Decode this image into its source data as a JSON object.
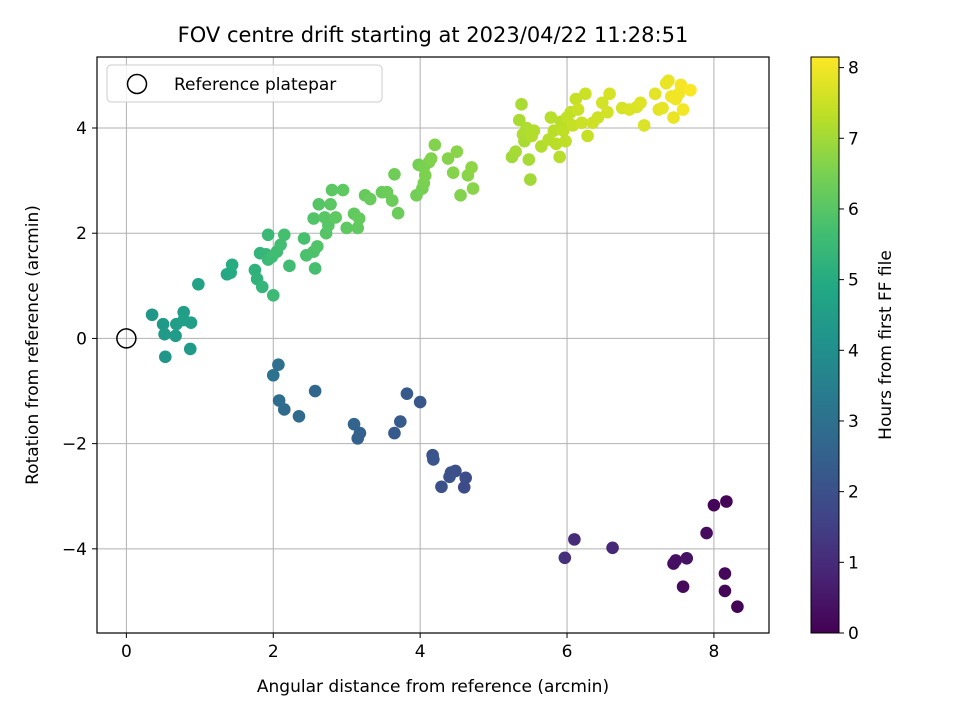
{
  "chart_data": {
    "type": "scatter",
    "title": "FOV centre drift starting at 2023/04/22 11:28:51",
    "xlabel": "Angular distance from reference (arcmin)",
    "ylabel": "Rotation from reference (arcmin)",
    "xlim": [
      -0.4,
      8.75
    ],
    "ylim": [
      -5.6,
      5.35
    ],
    "xticks": [
      0,
      2,
      4,
      6,
      8
    ],
    "yticks": [
      -4,
      -2,
      0,
      2,
      4
    ],
    "grid": true,
    "legend": {
      "placement": "top-left",
      "entries": [
        "Reference platepar"
      ]
    },
    "reference_point": {
      "x": 0,
      "y": 0
    },
    "colorbar": {
      "label": "Hours from first FF file",
      "min": 0,
      "max": 8.15,
      "ticks": [
        0,
        1,
        2,
        3,
        4,
        5,
        6,
        7,
        8
      ],
      "colormap": "viridis"
    },
    "points": [
      {
        "x": 8.32,
        "y": -5.1,
        "c": 0.05
      },
      {
        "x": 8.15,
        "y": -4.8,
        "c": 0.1
      },
      {
        "x": 8.15,
        "y": -4.47,
        "c": 0.15
      },
      {
        "x": 7.58,
        "y": -4.72,
        "c": 0.2
      },
      {
        "x": 7.45,
        "y": -4.28,
        "c": 0.3
      },
      {
        "x": 7.48,
        "y": -4.22,
        "c": 0.35
      },
      {
        "x": 7.63,
        "y": -4.18,
        "c": 0.4
      },
      {
        "x": 7.9,
        "y": -3.7,
        "c": 0.25
      },
      {
        "x": 8.0,
        "y": -3.17,
        "c": 0.1
      },
      {
        "x": 8.17,
        "y": -3.1,
        "c": 0.05
      },
      {
        "x": 6.62,
        "y": -3.98,
        "c": 0.9
      },
      {
        "x": 6.1,
        "y": -3.82,
        "c": 1.0
      },
      {
        "x": 5.97,
        "y": -4.17,
        "c": 1.1
      },
      {
        "x": 4.6,
        "y": -2.83,
        "c": 1.85
      },
      {
        "x": 4.62,
        "y": -2.65,
        "c": 1.9
      },
      {
        "x": 4.48,
        "y": -2.52,
        "c": 1.95
      },
      {
        "x": 4.42,
        "y": -2.55,
        "c": 2.0
      },
      {
        "x": 4.4,
        "y": -2.63,
        "c": 2.05
      },
      {
        "x": 4.29,
        "y": -2.82,
        "c": 2.0
      },
      {
        "x": 4.17,
        "y": -2.22,
        "c": 2.1
      },
      {
        "x": 4.18,
        "y": -2.3,
        "c": 2.15
      },
      {
        "x": 4.0,
        "y": -1.21,
        "c": 2.2
      },
      {
        "x": 3.82,
        "y": -1.05,
        "c": 2.3
      },
      {
        "x": 3.73,
        "y": -1.58,
        "c": 2.35
      },
      {
        "x": 3.65,
        "y": -1.8,
        "c": 2.3
      },
      {
        "x": 3.15,
        "y": -1.9,
        "c": 2.5
      },
      {
        "x": 3.18,
        "y": -1.8,
        "c": 2.55
      },
      {
        "x": 3.1,
        "y": -1.63,
        "c": 2.6
      },
      {
        "x": 2.57,
        "y": -1.0,
        "c": 2.7
      },
      {
        "x": 2.35,
        "y": -1.48,
        "c": 2.8
      },
      {
        "x": 2.15,
        "y": -1.35,
        "c": 2.85
      },
      {
        "x": 2.08,
        "y": -1.18,
        "c": 2.9
      },
      {
        "x": 2.07,
        "y": -0.5,
        "c": 3.0
      },
      {
        "x": 2.0,
        "y": -0.7,
        "c": 3.05
      },
      {
        "x": 0.35,
        "y": 0.45,
        "c": 4.3
      },
      {
        "x": 0.5,
        "y": 0.27,
        "c": 4.35
      },
      {
        "x": 0.52,
        "y": 0.08,
        "c": 4.4
      },
      {
        "x": 0.53,
        "y": -0.35,
        "c": 4.3
      },
      {
        "x": 0.67,
        "y": 0.05,
        "c": 4.45
      },
      {
        "x": 0.68,
        "y": 0.27,
        "c": 4.5
      },
      {
        "x": 0.78,
        "y": 0.5,
        "c": 4.55
      },
      {
        "x": 0.78,
        "y": 0.35,
        "c": 4.6
      },
      {
        "x": 0.88,
        "y": 0.3,
        "c": 4.6
      },
      {
        "x": 0.87,
        "y": -0.2,
        "c": 4.4
      },
      {
        "x": 0.98,
        "y": 1.03,
        "c": 4.7
      },
      {
        "x": 1.37,
        "y": 1.22,
        "c": 4.9
      },
      {
        "x": 1.42,
        "y": 1.25,
        "c": 4.95
      },
      {
        "x": 1.44,
        "y": 1.4,
        "c": 5.0
      },
      {
        "x": 1.75,
        "y": 1.3,
        "c": 5.2
      },
      {
        "x": 1.78,
        "y": 1.13,
        "c": 5.25
      },
      {
        "x": 1.82,
        "y": 1.62,
        "c": 5.3
      },
      {
        "x": 1.85,
        "y": 0.98,
        "c": 5.35
      },
      {
        "x": 1.9,
        "y": 1.6,
        "c": 5.4
      },
      {
        "x": 1.93,
        "y": 1.97,
        "c": 5.45
      },
      {
        "x": 1.93,
        "y": 1.5,
        "c": 5.5
      },
      {
        "x": 1.98,
        "y": 1.55,
        "c": 5.55
      },
      {
        "x": 2.0,
        "y": 0.82,
        "c": 5.5
      },
      {
        "x": 2.05,
        "y": 1.65,
        "c": 5.6
      },
      {
        "x": 2.1,
        "y": 1.78,
        "c": 5.65
      },
      {
        "x": 2.15,
        "y": 1.97,
        "c": 5.7
      },
      {
        "x": 2.22,
        "y": 1.38,
        "c": 5.6
      },
      {
        "x": 2.42,
        "y": 1.9,
        "c": 5.75
      },
      {
        "x": 2.45,
        "y": 1.58,
        "c": 5.8
      },
      {
        "x": 2.55,
        "y": 1.65,
        "c": 5.85
      },
      {
        "x": 2.57,
        "y": 1.33,
        "c": 5.7
      },
      {
        "x": 2.55,
        "y": 2.28,
        "c": 5.9
      },
      {
        "x": 2.6,
        "y": 1.75,
        "c": 5.9
      },
      {
        "x": 2.62,
        "y": 2.55,
        "c": 5.95
      },
      {
        "x": 2.7,
        "y": 2.3,
        "c": 6.0
      },
      {
        "x": 2.72,
        "y": 2.0,
        "c": 5.95
      },
      {
        "x": 2.75,
        "y": 2.15,
        "c": 6.0
      },
      {
        "x": 2.78,
        "y": 2.55,
        "c": 6.05
      },
      {
        "x": 2.8,
        "y": 2.82,
        "c": 6.05
      },
      {
        "x": 2.85,
        "y": 2.3,
        "c": 6.1
      },
      {
        "x": 2.95,
        "y": 2.82,
        "c": 6.1
      },
      {
        "x": 3.0,
        "y": 2.1,
        "c": 6.1
      },
      {
        "x": 3.1,
        "y": 2.37,
        "c": 6.15
      },
      {
        "x": 3.15,
        "y": 2.1,
        "c": 6.15
      },
      {
        "x": 3.17,
        "y": 2.28,
        "c": 6.2
      },
      {
        "x": 3.25,
        "y": 2.72,
        "c": 6.2
      },
      {
        "x": 3.32,
        "y": 2.65,
        "c": 6.25
      },
      {
        "x": 3.48,
        "y": 2.78,
        "c": 6.25
      },
      {
        "x": 3.55,
        "y": 2.78,
        "c": 6.3
      },
      {
        "x": 3.62,
        "y": 2.62,
        "c": 6.3
      },
      {
        "x": 3.65,
        "y": 3.12,
        "c": 6.35
      },
      {
        "x": 3.7,
        "y": 2.38,
        "c": 6.3
      },
      {
        "x": 3.95,
        "y": 2.72,
        "c": 6.4
      },
      {
        "x": 3.98,
        "y": 3.3,
        "c": 6.45
      },
      {
        "x": 4.03,
        "y": 2.85,
        "c": 6.45
      },
      {
        "x": 4.05,
        "y": 2.95,
        "c": 6.5
      },
      {
        "x": 4.05,
        "y": 3.25,
        "c": 6.5
      },
      {
        "x": 4.07,
        "y": 3.1,
        "c": 6.55
      },
      {
        "x": 4.12,
        "y": 3.35,
        "c": 6.55
      },
      {
        "x": 4.15,
        "y": 3.42,
        "c": 6.6
      },
      {
        "x": 4.2,
        "y": 3.68,
        "c": 6.6
      },
      {
        "x": 4.38,
        "y": 3.42,
        "c": 6.65
      },
      {
        "x": 4.45,
        "y": 3.15,
        "c": 6.65
      },
      {
        "x": 4.5,
        "y": 3.55,
        "c": 6.7
      },
      {
        "x": 4.55,
        "y": 2.72,
        "c": 6.6
      },
      {
        "x": 4.65,
        "y": 3.1,
        "c": 6.7
      },
      {
        "x": 4.7,
        "y": 3.25,
        "c": 6.75
      },
      {
        "x": 4.72,
        "y": 2.85,
        "c": 6.7
      },
      {
        "x": 5.25,
        "y": 3.45,
        "c": 7.0
      },
      {
        "x": 5.3,
        "y": 3.55,
        "c": 7.05
      },
      {
        "x": 5.35,
        "y": 4.15,
        "c": 7.1
      },
      {
        "x": 5.38,
        "y": 4.45,
        "c": 7.1
      },
      {
        "x": 5.4,
        "y": 3.88,
        "c": 7.15
      },
      {
        "x": 5.42,
        "y": 3.75,
        "c": 7.1
      },
      {
        "x": 5.45,
        "y": 4.0,
        "c": 7.15
      },
      {
        "x": 5.48,
        "y": 3.4,
        "c": 7.05
      },
      {
        "x": 5.5,
        "y": 3.02,
        "c": 7.0
      },
      {
        "x": 5.52,
        "y": 3.85,
        "c": 7.2
      },
      {
        "x": 5.55,
        "y": 3.95,
        "c": 7.2
      },
      {
        "x": 5.65,
        "y": 3.65,
        "c": 7.2
      },
      {
        "x": 5.75,
        "y": 3.78,
        "c": 7.25
      },
      {
        "x": 5.78,
        "y": 4.2,
        "c": 7.25
      },
      {
        "x": 5.82,
        "y": 3.95,
        "c": 7.3
      },
      {
        "x": 5.85,
        "y": 3.7,
        "c": 7.3
      },
      {
        "x": 5.9,
        "y": 3.45,
        "c": 7.25
      },
      {
        "x": 5.92,
        "y": 4.12,
        "c": 7.3
      },
      {
        "x": 5.95,
        "y": 3.95,
        "c": 7.35
      },
      {
        "x": 5.98,
        "y": 3.75,
        "c": 7.35
      },
      {
        "x": 6.0,
        "y": 4.2,
        "c": 7.4
      },
      {
        "x": 6.05,
        "y": 4.3,
        "c": 7.4
      },
      {
        "x": 6.08,
        "y": 4.05,
        "c": 7.45
      },
      {
        "x": 6.12,
        "y": 4.55,
        "c": 7.45
      },
      {
        "x": 6.15,
        "y": 4.35,
        "c": 7.5
      },
      {
        "x": 6.2,
        "y": 4.1,
        "c": 7.5
      },
      {
        "x": 6.25,
        "y": 4.65,
        "c": 7.5
      },
      {
        "x": 6.28,
        "y": 3.85,
        "c": 7.45
      },
      {
        "x": 6.35,
        "y": 4.1,
        "c": 7.55
      },
      {
        "x": 6.42,
        "y": 4.2,
        "c": 7.55
      },
      {
        "x": 6.48,
        "y": 4.48,
        "c": 7.6
      },
      {
        "x": 6.55,
        "y": 4.3,
        "c": 7.6
      },
      {
        "x": 6.58,
        "y": 4.65,
        "c": 7.65
      },
      {
        "x": 6.75,
        "y": 4.38,
        "c": 7.65
      },
      {
        "x": 6.85,
        "y": 4.35,
        "c": 7.7
      },
      {
        "x": 6.95,
        "y": 4.4,
        "c": 7.7
      },
      {
        "x": 7.0,
        "y": 4.48,
        "c": 7.75
      },
      {
        "x": 7.05,
        "y": 4.05,
        "c": 7.7
      },
      {
        "x": 7.2,
        "y": 4.65,
        "c": 7.8
      },
      {
        "x": 7.25,
        "y": 4.35,
        "c": 7.8
      },
      {
        "x": 7.3,
        "y": 4.38,
        "c": 7.85
      },
      {
        "x": 7.35,
        "y": 4.85,
        "c": 7.9
      },
      {
        "x": 7.38,
        "y": 4.9,
        "c": 7.9
      },
      {
        "x": 7.42,
        "y": 4.6,
        "c": 7.95
      },
      {
        "x": 7.45,
        "y": 4.2,
        "c": 7.9
      },
      {
        "x": 7.48,
        "y": 4.55,
        "c": 8.0
      },
      {
        "x": 7.52,
        "y": 4.65,
        "c": 8.0
      },
      {
        "x": 7.55,
        "y": 4.82,
        "c": 8.05
      },
      {
        "x": 7.58,
        "y": 4.35,
        "c": 8.05
      },
      {
        "x": 7.68,
        "y": 4.72,
        "c": 8.1
      }
    ]
  }
}
